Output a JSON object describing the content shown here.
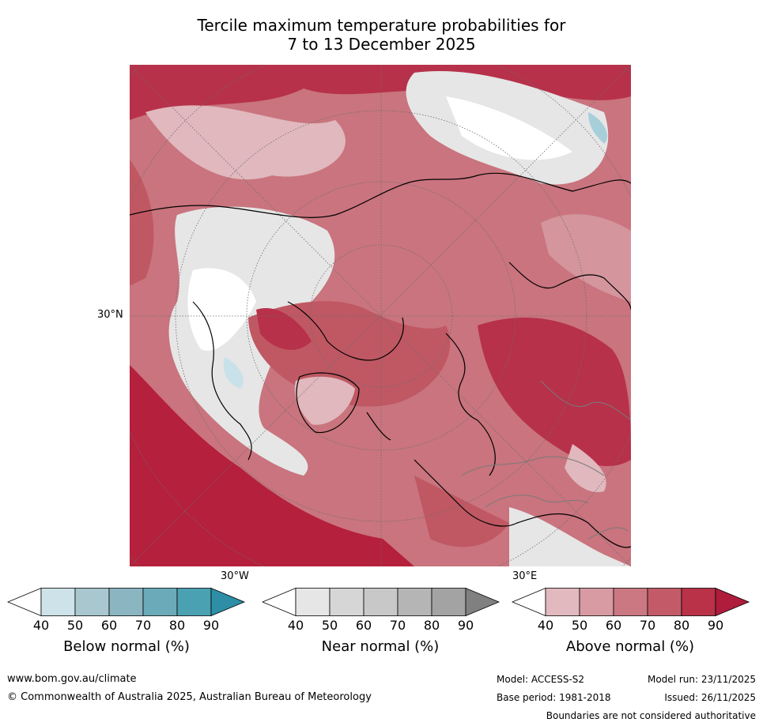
{
  "title_line1": "Tercile maximum temperature probabilities for",
  "title_line2": "7 to 13 December 2025",
  "map": {
    "lat_label": "30°N",
    "lon_label_w": "30°W",
    "lon_label_e": "30°E",
    "colors": {
      "above": [
        "#e0b8bd",
        "#d4959d",
        "#c9747e",
        "#bf5863",
        "#b7314a",
        "#b5203c"
      ],
      "near": [
        "#ffffff",
        "#e6e6e6",
        "#d6d6d6"
      ],
      "below": [
        "#c9e1e8",
        "#a6cfda"
      ]
    }
  },
  "colorbars": [
    {
      "label": "Below normal (%)",
      "ticks": [
        "40",
        "50",
        "60",
        "70",
        "80",
        "90"
      ],
      "colors": [
        "#ffffff",
        "#cde3e9",
        "#a9c7cf",
        "#8ab5c1",
        "#6babb9",
        "#4aa1b2",
        "#2d8ea6"
      ]
    },
    {
      "label": "Near normal (%)",
      "ticks": [
        "40",
        "50",
        "60",
        "70",
        "80",
        "90"
      ],
      "colors": [
        "#ffffff",
        "#e6e6e6",
        "#d6d6d6",
        "#c8c8c8",
        "#b5b5b5",
        "#a3a3a3",
        "#808080"
      ]
    },
    {
      "label": "Above normal (%)",
      "ticks": [
        "40",
        "50",
        "60",
        "70",
        "80",
        "90"
      ],
      "colors": [
        "#ffffff",
        "#e2b9bf",
        "#d89ba3",
        "#cb7882",
        "#c25b67",
        "#b93248",
        "#b01c3b"
      ]
    }
  ],
  "footer": {
    "website": "www.bom.gov.au/climate",
    "copyright": "© Commonwealth of Australia 2025, Australian Bureau of Meteorology",
    "model": "Model: ACCESS-S2",
    "base_period": "Base period: 1981-2018",
    "model_run": "Model run: 23/11/2025",
    "issued": "Issued: 26/11/2025",
    "disclaimer": "Boundaries are not considered authoritative"
  }
}
